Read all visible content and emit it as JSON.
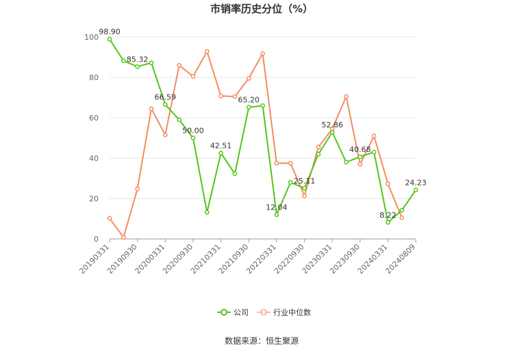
{
  "chart_data": {
    "type": "line",
    "title": "市销率历史分位（%）",
    "x_ticks": [
      "20190331",
      "20190930",
      "20200331",
      "20200930",
      "20210331",
      "20210930",
      "20220331",
      "20220930",
      "20230331",
      "20230930",
      "20240331",
      "20240809"
    ],
    "y_ticks": [
      "0",
      "20",
      "40",
      "60",
      "80",
      "100"
    ],
    "ylim": [
      0,
      100
    ],
    "grid": true,
    "legend_position": "bottom",
    "source": "数据来源：恒生聚源",
    "series": [
      {
        "name": "公司",
        "color": "#52c41a",
        "values": [
          98.9,
          88.2,
          85.32,
          87.2,
          66.59,
          59.0,
          50.0,
          13.2,
          42.51,
          32.3,
          65.2,
          66.0,
          12.04,
          28.0,
          25.11,
          42.0,
          52.86,
          38.0,
          40.68,
          43.0,
          8.22,
          14.2,
          24.23
        ],
        "labels": {
          "0": "98.90",
          "2": "85.32",
          "4": "66.59",
          "6": "50.00",
          "8": "42.51",
          "10": "65.20",
          "12": "12.04",
          "14": "25.11",
          "16": "52.86",
          "18": "40.68",
          "20": "8.22",
          "22": "24.23"
        }
      },
      {
        "name": "行业中位数",
        "color": "#f28c5e",
        "values": [
          10.2,
          0.8,
          24.8,
          64.5,
          51.5,
          86.0,
          80.5,
          92.8,
          70.8,
          70.5,
          79.5,
          91.8,
          37.5,
          37.5,
          21.3,
          45.5,
          54.5,
          70.5,
          37.0,
          51.0,
          27.3,
          10.5,
          null
        ]
      }
    ]
  }
}
